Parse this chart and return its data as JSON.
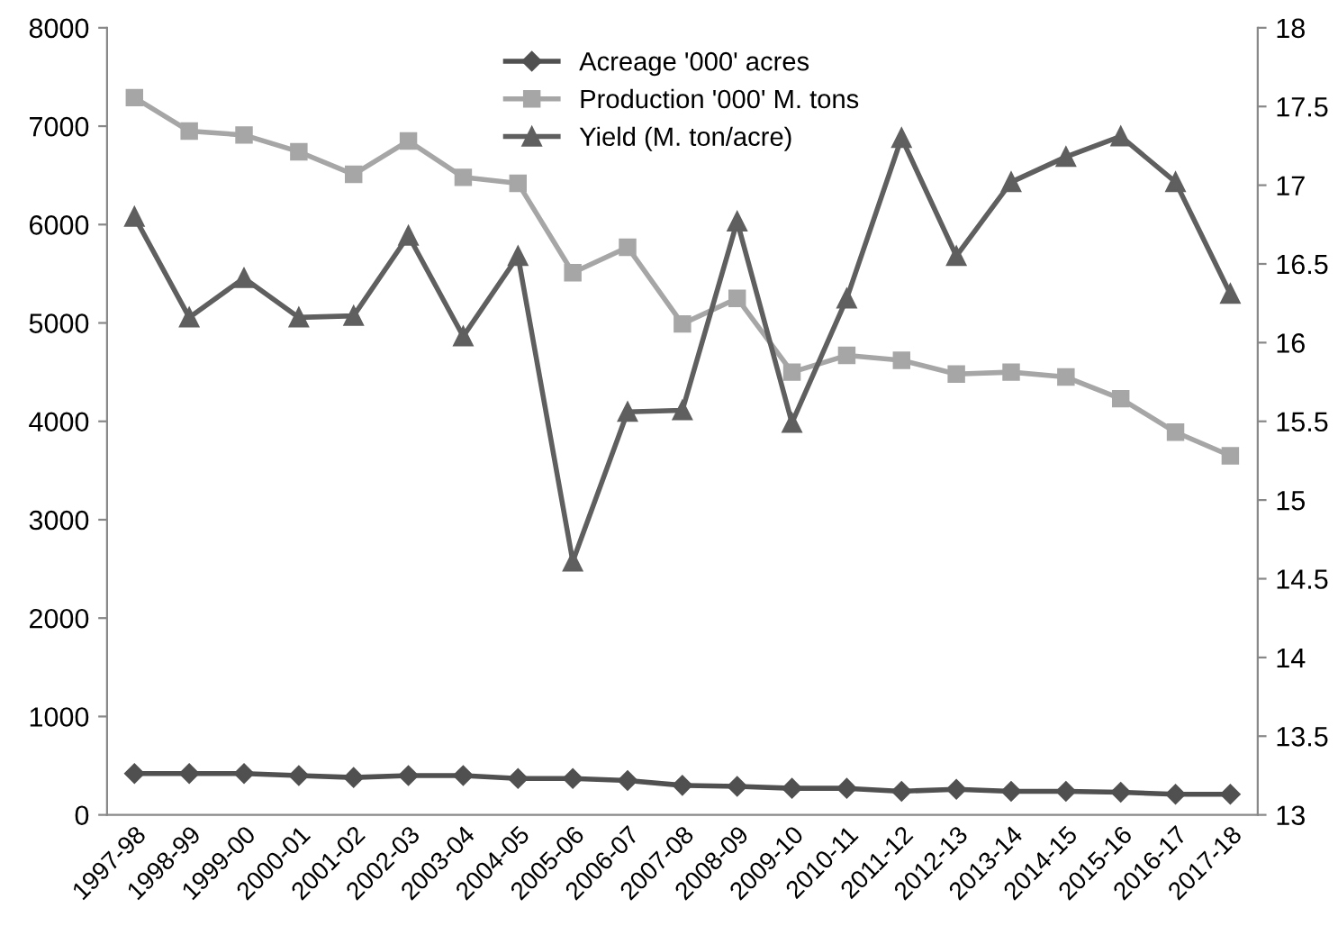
{
  "chart_data": {
    "type": "line",
    "categories": [
      "1997-98",
      "1998-99",
      "1999-00",
      "2000-01",
      "2001-02",
      "2002-03",
      "2003-04",
      "2004-05",
      "2005-06",
      "2006-07",
      "2007-08",
      "2008-09",
      "2009-10",
      "2010-11",
      "2011-12",
      "2012-13",
      "2013-14",
      "2014-15",
      "2015-16",
      "2016-17",
      "2017-18"
    ],
    "series": [
      {
        "name": "Acreage '000' acres",
        "color": "#505050",
        "marker": "diamond",
        "values": [
          420,
          420,
          420,
          400,
          380,
          400,
          400,
          370,
          370,
          350,
          300,
          290,
          270,
          270,
          240,
          260,
          240,
          240,
          230,
          210,
          210
        ]
      },
      {
        "name": "Production '000' M. tons",
        "color": "#a6a6a6",
        "marker": "square",
        "values": [
          7290,
          6950,
          6910,
          6740,
          6510,
          6850,
          6480,
          6420,
          5510,
          5770,
          4990,
          5250,
          4500,
          4670,
          4620,
          4480,
          4500,
          4450,
          4230,
          3890,
          3650
        ]
      },
      {
        "name": "Yield (M. ton/acre)",
        "color": "#5f5f5f",
        "marker": "triangle",
        "axis": "y2",
        "values": [
          16.8,
          16.16,
          16.41,
          16.16,
          16.17,
          16.68,
          16.04,
          16.55,
          14.61,
          15.56,
          15.57,
          16.77,
          15.49,
          16.28,
          17.3,
          16.55,
          17.02,
          17.18,
          17.31,
          17.02,
          16.31
        ]
      }
    ],
    "ylim": [
      0,
      8000
    ],
    "yticks": [
      0,
      1000,
      2000,
      3000,
      4000,
      5000,
      6000,
      7000,
      8000
    ],
    "y2lim": [
      13,
      18
    ],
    "y2ticks": [
      13,
      13.5,
      14,
      14.5,
      15,
      15.5,
      16,
      16.5,
      17,
      17.5,
      18
    ],
    "grid": false,
    "legend": "top",
    "line_style": "solid"
  }
}
